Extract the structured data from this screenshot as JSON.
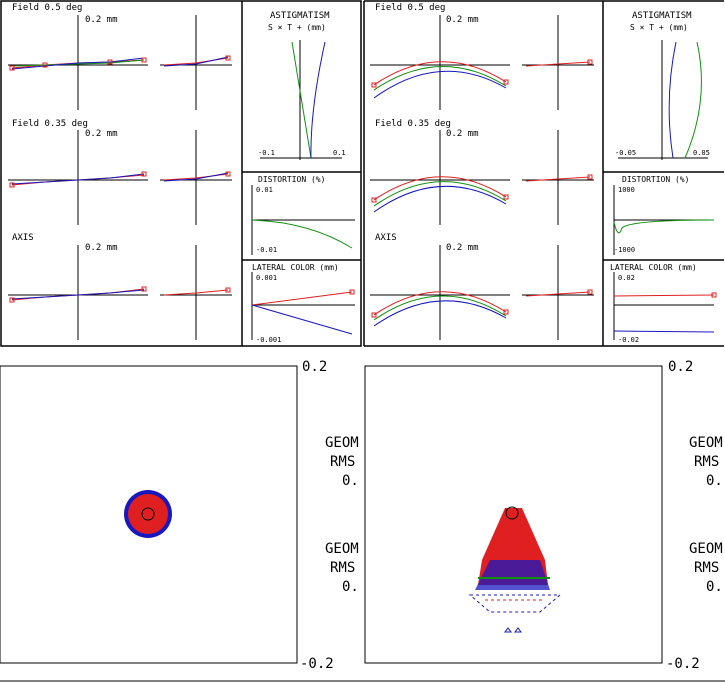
{
  "colors": {
    "red": "#e02020",
    "green": "#109010",
    "blue": "#1818c0",
    "black": "#000000"
  },
  "ray_fans": {
    "left": [
      {
        "title": "Field 0.5 deg",
        "scale": "0.2 mm"
      },
      {
        "title": "Field 0.35 deg",
        "scale": "0.2 mm"
      },
      {
        "title": "AXIS",
        "scale": "0.2 mm"
      }
    ],
    "right": [
      {
        "title": "Field 0.5 deg",
        "scale": "0.2 mm"
      },
      {
        "title": "Field 0.35 deg",
        "scale": "0.2 mm"
      },
      {
        "title": "AXIS",
        "scale": "0.2 mm"
      }
    ]
  },
  "astigmatism": {
    "left": {
      "title": "ASTIGMATISM",
      "legend": "S × T + (mm)",
      "xmin": "-0.1",
      "xmax": "0.1"
    },
    "right": {
      "title": "ASTIGMATISM",
      "legend": "S × T + (mm)",
      "xmin": "-0.05",
      "xmax": "0.05"
    }
  },
  "distortion": {
    "left": {
      "title": "DISTORTION (%)",
      "ymax": "0.01",
      "ymin": "-0.01"
    },
    "right": {
      "title": "DISTORTION (%)",
      "ymax": "1000",
      "ymin": "-1000"
    }
  },
  "lateral_color": {
    "left": {
      "title": "LATERAL COLOR (mm)",
      "ymax": "0.001",
      "ymin": "-0.001"
    },
    "right": {
      "title": "LATERAL COLOR (mm)",
      "ymax": "0.02",
      "ymin": "-0.02"
    }
  },
  "spot": {
    "left": {
      "scale_top": "0.2",
      "scale_bottom": "-0.2",
      "lines": [
        "GEOM",
        "RMS",
        "0.",
        "GEOM",
        "RMS",
        "0."
      ]
    },
    "right": {
      "scale_top": "0.2",
      "scale_bottom": "-0.2",
      "lines": [
        "GEOM",
        "RMS",
        "0.",
        "GEOM",
        "RMS",
        "0."
      ]
    }
  }
}
